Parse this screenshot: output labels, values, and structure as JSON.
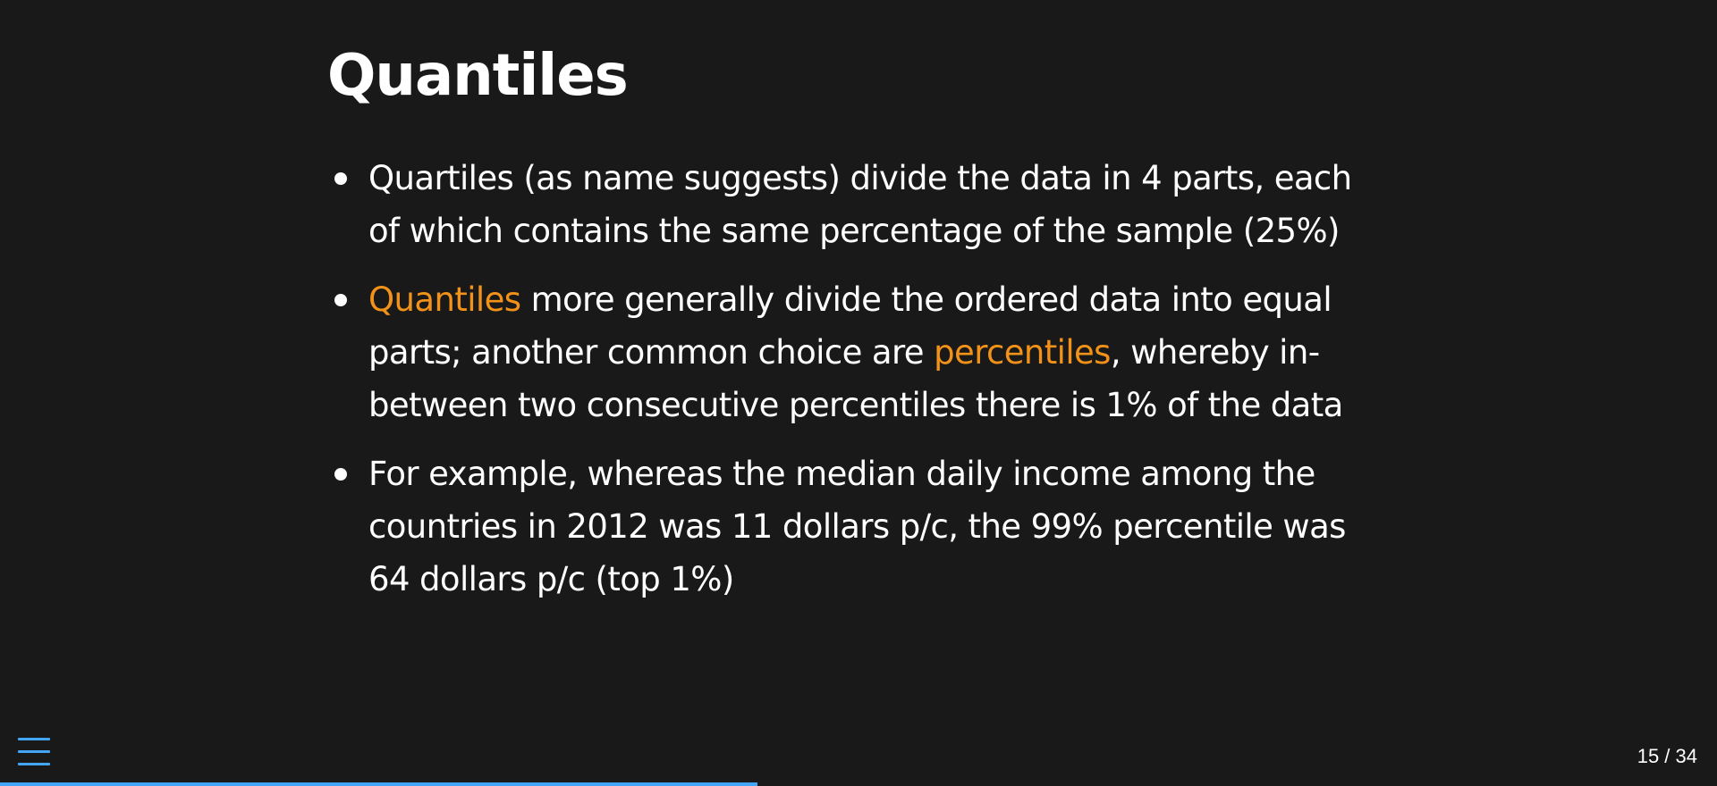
{
  "slide": {
    "title": "Quantiles",
    "bullets": [
      {
        "segments": [
          {
            "text": "Quartiles (as name suggests) divide the data in 4 parts, each of which contains the same percentage of the sample (25%)",
            "highlight": false
          }
        ]
      },
      {
        "segments": [
          {
            "text": "Quantiles",
            "highlight": true
          },
          {
            "text": " more generally divide the ordered data into equal parts; another common choice are ",
            "highlight": false
          },
          {
            "text": "percentiles",
            "highlight": true
          },
          {
            "text": ", whereby in-between two consecutive percentiles there is 1% of the data",
            "highlight": false
          }
        ]
      },
      {
        "segments": [
          {
            "text": "For example, whereas the median daily income among the countries in 2012 was 11 dollars p/c, the 99% percentile was 64 dollars p/c (top 1%)",
            "highlight": false
          }
        ]
      }
    ]
  },
  "footer": {
    "menu_icon": "hamburger-menu-icon",
    "slide_number": "15 / 34",
    "progress": 0.4412
  },
  "colors": {
    "background": "#191919",
    "text": "#ffffff",
    "highlight": "#f39218",
    "accent": "#42a5f5"
  }
}
